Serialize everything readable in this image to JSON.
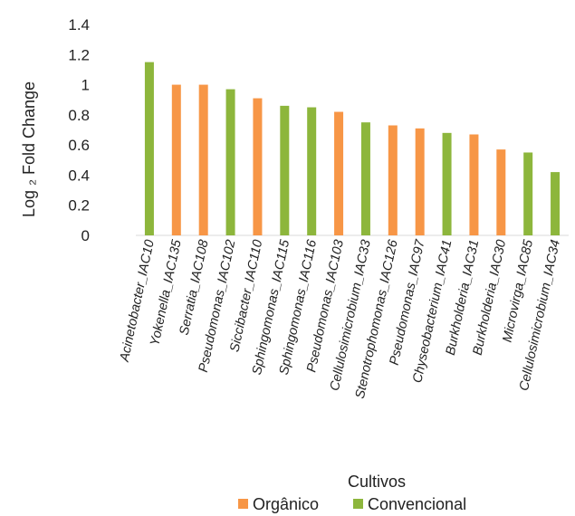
{
  "chart_data": {
    "type": "bar",
    "title": "",
    "xlabel": "Cultivos",
    "ylabel": "Log ₂ Fold Change",
    "ylim": [
      0,
      1.4
    ],
    "yticks": [
      "0",
      "0.2",
      "0.4",
      "0.6",
      "0.8",
      "1",
      "1.2",
      "1.4"
    ],
    "grid": false,
    "legend_position": "bottom",
    "legend": [
      {
        "name": "Orgânico",
        "color": "#F79646"
      },
      {
        "name": "Convencional",
        "color": "#8DB63C"
      }
    ],
    "categories": [
      "Acinetobacter_IAC10",
      "Yokenella_IAC135",
      "Serratia_IAC108",
      "Pseudomonas_IAC102",
      "Siccibacter_IAC110",
      "Sphingomonas_IAC115",
      "Sphingomonas_IAC116",
      "Pseudomonas_IAC103",
      "Cellulosimicrobium_IAC33",
      "Stenotrophomonas_IAC126",
      "Pseudomonas_IAC97",
      "Chyseobacterium_IAC41",
      "Burkholderia_IAC31",
      "Burkholderia_IAC30",
      "Microvirga_IAC85",
      "Cellulosimicrobium_IAC34"
    ],
    "values": [
      1.15,
      1.0,
      1.0,
      0.97,
      0.91,
      0.86,
      0.85,
      0.82,
      0.75,
      0.73,
      0.71,
      0.68,
      0.67,
      0.57,
      0.55,
      0.42
    ],
    "groups": [
      "Convencional",
      "Orgânico",
      "Orgânico",
      "Convencional",
      "Orgânico",
      "Convencional",
      "Convencional",
      "Orgânico",
      "Convencional",
      "Orgânico",
      "Orgânico",
      "Convencional",
      "Orgânico",
      "Orgânico",
      "Convencional",
      "Convencional"
    ]
  }
}
